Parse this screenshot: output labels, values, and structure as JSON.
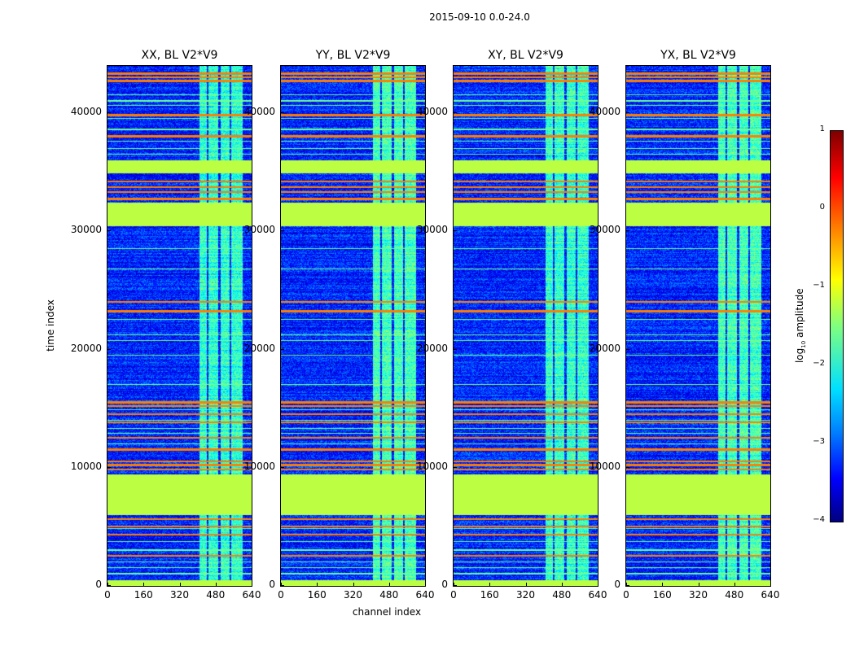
{
  "suptitle": "2015-09-10 0.0-24.0",
  "xlabel": "channel index",
  "ylabel": "time index",
  "colorbar": {
    "label_prefix": "log",
    "label_sub": "10",
    "label_suffix": " amplitude",
    "ticks": [
      "1",
      "0",
      "−1",
      "−2",
      "−3",
      "−4"
    ],
    "range": [
      -4,
      1
    ],
    "colormap": "jet"
  },
  "panels": [
    {
      "title": "XX, BL V2*V9"
    },
    {
      "title": "YY, BL V2*V9"
    },
    {
      "title": "XY, BL V2*V9"
    },
    {
      "title": "YX, BL V2*V9"
    }
  ],
  "chart_data": {
    "type": "heatmap",
    "title": "2015-09-10 0.0-24.0",
    "xlabel": "channel index",
    "ylabel": "time index",
    "xlim": [
      0,
      640
    ],
    "ylim": [
      0,
      44000
    ],
    "xticks": [
      "0",
      "160",
      "320",
      "480",
      "640"
    ],
    "yticks": [
      "0",
      "10000",
      "20000",
      "30000",
      "40000"
    ],
    "value_scale": "log10 amplitude",
    "clim": [
      -4,
      1
    ],
    "background_level": -3.2,
    "flagged_level": -1.2,
    "flagged_time_ranges": [
      [
        0,
        450
      ],
      [
        5950,
        9400
      ],
      [
        30400,
        32400
      ],
      [
        34900,
        36000
      ]
    ],
    "rfi_channel_range": [
      406,
      600
    ],
    "rfi_gap_channels": [
      [
        440,
        448
      ],
      [
        490,
        500
      ],
      [
        540,
        548
      ]
    ],
    "rfi_level": -1.9,
    "orange_line_times": [
      43300,
      43000,
      42700,
      39800,
      38000,
      34200,
      33700,
      33300,
      32700,
      24000,
      23200,
      15500,
      15200,
      14500,
      13800,
      12500,
      11500,
      10500,
      10200,
      9800,
      5600,
      5000,
      4300,
      2500
    ],
    "green_line_times": [
      41500,
      41000,
      40600,
      39500,
      38600,
      37600,
      37000,
      36500,
      28500,
      26800,
      22500,
      21200,
      20700,
      19500,
      17000,
      14900,
      14000,
      13300,
      12900,
      12000,
      4800,
      3700,
      3000,
      2000,
      1500,
      1000
    ]
  }
}
